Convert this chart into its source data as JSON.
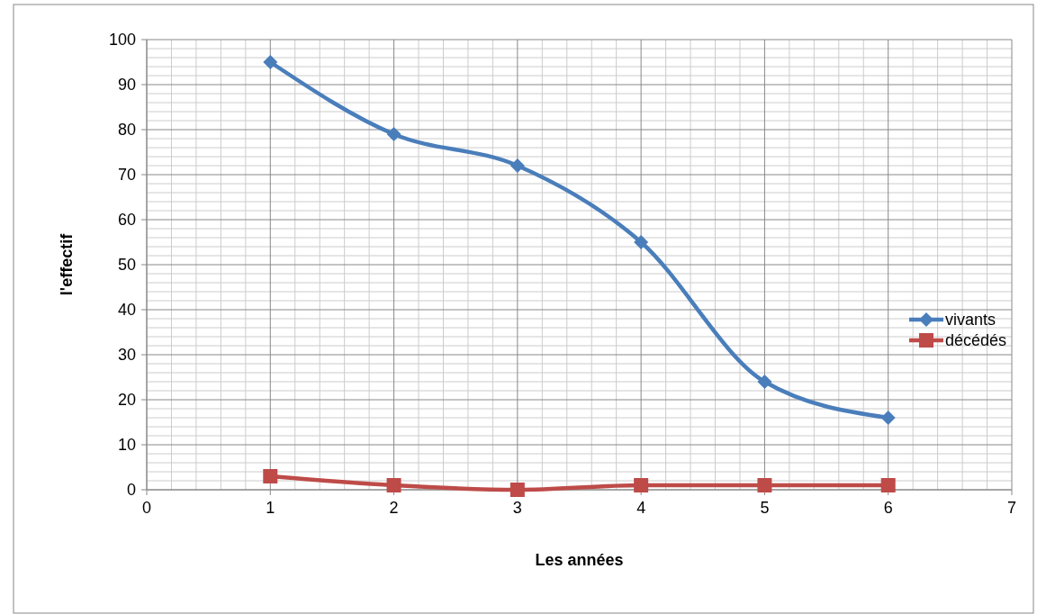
{
  "chart_data": {
    "type": "line",
    "xlabel": "Les années",
    "ylabel": "l'effectif",
    "x": [
      1,
      2,
      3,
      4,
      5,
      6
    ],
    "series": [
      {
        "name": "vivants",
        "color": "#4a7ebb",
        "values": [
          95,
          79,
          72,
          55,
          24,
          16
        ],
        "marker": "diamond"
      },
      {
        "name": "décédés",
        "color": "#be4b48",
        "values": [
          3,
          1,
          0,
          1,
          1,
          1
        ],
        "marker": "square"
      }
    ],
    "xlim": [
      0,
      7
    ],
    "xticks": [
      0,
      1,
      2,
      3,
      4,
      5,
      6,
      7
    ],
    "ylim": [
      0,
      100
    ],
    "yticks": [
      0,
      10,
      20,
      30,
      40,
      50,
      60,
      70,
      80,
      90,
      100
    ],
    "grid": true,
    "legend": "right",
    "line_style": "solid"
  }
}
